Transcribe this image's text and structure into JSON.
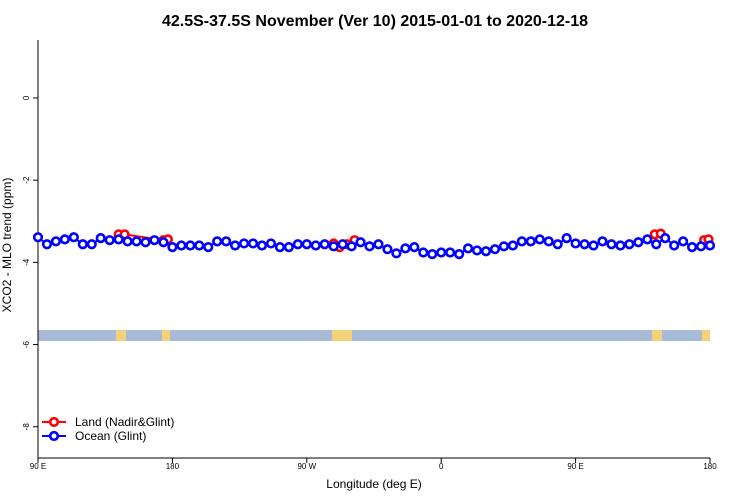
{
  "chart_data": {
    "type": "line",
    "title": "42.5S-37.5S November (Ver 10)   2015-01-01 to 2020-12-18",
    "x_label": "Longitude (deg E)",
    "y_label": "XCO2 - MLO trend (ppm)",
    "xlim": [
      90,
      540
    ],
    "ylim": [
      -8.76,
      1.41
    ],
    "xticks": [
      {
        "value": 90,
        "label": "90 E"
      },
      180,
      {
        "value": 270,
        "label": "90 W"
      },
      {
        "value": 360,
        "label": "0"
      },
      {
        "value": 450,
        "label": "90 E"
      },
      {
        "value": 540,
        "label": "180"
      }
    ],
    "yticks": [
      0,
      -2,
      -4,
      -6,
      -8
    ],
    "legend": "bottom-left",
    "series": [
      {
        "name": "Land (Nadir&Glint)",
        "color": "#ff0000",
        "x": [
          144,
          148,
          174,
          177,
          230,
          288,
          292,
          297,
          302,
          400,
          503,
          507,
          520,
          536,
          539
        ],
        "values": [
          -3.32,
          -3.32,
          -3.46,
          -3.44,
          null,
          -3.54,
          -3.63,
          -3.56,
          -3.46,
          null,
          -3.32,
          -3.3,
          null,
          -3.46,
          -3.44
        ]
      },
      {
        "name": "Ocean (Glint)",
        "color": "#0000ff",
        "x": [
          90,
          96,
          102,
          108,
          114,
          120,
          126,
          132,
          138,
          144,
          150,
          156,
          162,
          168,
          174,
          180,
          186,
          192,
          198,
          204,
          210,
          216,
          222,
          228,
          234,
          240,
          246,
          252,
          258,
          264,
          270,
          276,
          282,
          288,
          294,
          300,
          306,
          312,
          318,
          324,
          330,
          336,
          342,
          348,
          354,
          360,
          366,
          372,
          378,
          384,
          390,
          396,
          402,
          408,
          414,
          420,
          426,
          432,
          438,
          444,
          450,
          456,
          462,
          468,
          474,
          480,
          486,
          492,
          498,
          504,
          510,
          516,
          522,
          528,
          534,
          540
        ],
        "values": [
          -3.39,
          -3.56,
          -3.49,
          -3.44,
          -3.39,
          -3.56,
          -3.56,
          -3.41,
          -3.46,
          -3.44,
          -3.49,
          -3.49,
          -3.51,
          -3.46,
          -3.51,
          -3.63,
          -3.59,
          -3.59,
          -3.59,
          -3.63,
          -3.49,
          -3.49,
          -3.59,
          -3.54,
          -3.54,
          -3.59,
          -3.54,
          -3.63,
          -3.63,
          -3.56,
          -3.56,
          -3.59,
          -3.56,
          -3.61,
          -3.56,
          -3.61,
          -3.51,
          -3.61,
          -3.56,
          -3.68,
          -3.78,
          -3.66,
          -3.63,
          -3.76,
          -3.8,
          -3.76,
          -3.76,
          -3.8,
          -3.66,
          -3.71,
          -3.73,
          -3.68,
          -3.61,
          -3.59,
          -3.49,
          -3.49,
          -3.44,
          -3.49,
          -3.56,
          -3.41,
          -3.54,
          -3.56,
          -3.59,
          -3.49,
          -3.56,
          -3.59,
          -3.56,
          -3.51,
          -3.44,
          -3.56,
          -3.41,
          -3.59,
          -3.49,
          -3.63,
          -3.61,
          -3.59
        ]
      }
    ]
  }
}
